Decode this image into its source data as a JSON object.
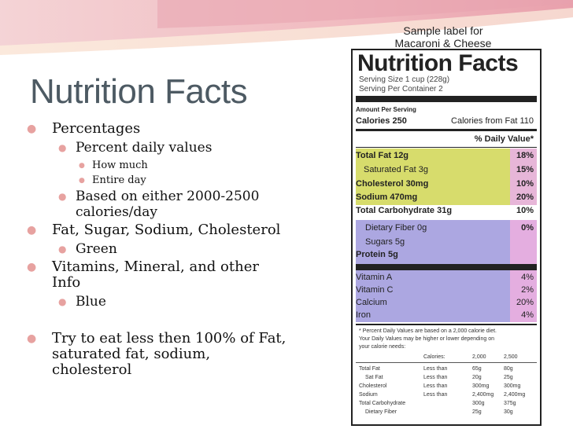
{
  "slide": {
    "title": "Nutrition Facts",
    "bullets": [
      {
        "text": "Percentages",
        "level": 1
      },
      {
        "text": "Percent daily values",
        "level": 2
      },
      {
        "text": "How much",
        "level": 3
      },
      {
        "text": "Entire day",
        "level": 3
      },
      {
        "text": "Based on either 2000-2500",
        "level": 2
      },
      {
        "text": "calories/day",
        "level": 2
      },
      {
        "text": "Fat, Sugar, Sodium, Cholesterol",
        "level": 1
      },
      {
        "text": "Green",
        "level": 2
      },
      {
        "text": "Vitamins, Mineral, and other",
        "level": 1
      },
      {
        "text": "Info",
        "level": 1
      },
      {
        "text": "Blue",
        "level": 2
      },
      {
        "text": "Try to eat less then 100% of Fat,",
        "level": 1
      },
      {
        "text": "saturated fat, sodium,",
        "level": 1
      },
      {
        "text": "cholesterol",
        "level": 1
      }
    ]
  },
  "label": {
    "sample_line1": "Sample label for",
    "sample_line2": "Macaroni & Cheese",
    "title": "Nutrition Facts",
    "serving_size": "Serving Size 1 cup (228g)",
    "servings_per_container": "Serving Per Container 2",
    "amount_per_serving": "Amount Per Serving",
    "calories": "Calories 250",
    "calories_from_fat": "Calories from Fat 110",
    "daily_value_header": "% Daily Value*",
    "nutrients": [
      {
        "name": "Total Fat 12g",
        "pct": "18%"
      },
      {
        "name": "Saturated Fat 3g",
        "pct": "15%"
      },
      {
        "name": "Cholesterol 30mg",
        "pct": "10%"
      },
      {
        "name": "Sodium 470mg",
        "pct": "20%"
      },
      {
        "name": "Total Carbohydrate 31g",
        "pct": "10%"
      }
    ],
    "others": [
      {
        "name": "Dietary Fiber 0g",
        "pct": "0%"
      },
      {
        "name": "Sugars 5g",
        "pct": ""
      },
      {
        "name": "Protein 5g",
        "pct": ""
      }
    ],
    "vitamins": [
      {
        "name": "Vitamin A",
        "pct": "4%"
      },
      {
        "name": "Vitamin C",
        "pct": "2%"
      },
      {
        "name": "Calcium",
        "pct": "20%"
      },
      {
        "name": "Iron",
        "pct": "4%"
      }
    ],
    "footnote": [
      "* Percent Daily Values are based on a 2,000 calorie diet.",
      "Your Daily Values may be higher or lower depending on",
      "your calorie needs:"
    ],
    "table_header": [
      "Calories:",
      "2,000",
      "2,500"
    ],
    "table_rows": [
      [
        "Total Fat",
        "Less than",
        "65g",
        "80g"
      ],
      [
        "Sat Fat",
        "Less than",
        "20g",
        "25g"
      ],
      [
        "Cholesterol",
        "Less than",
        "300mg",
        "300mg"
      ],
      [
        "Sodium",
        "Less than",
        "2,400mg",
        "2,400mg"
      ],
      [
        "Total Carbohydrate",
        "",
        "300g",
        "375g"
      ],
      [
        "Dietary Fiber",
        "",
        "25g",
        "30g"
      ]
    ]
  },
  "colors": {
    "green": "#d7dc6c",
    "purple": "#aca7e1",
    "pink": "#e4aee0",
    "bullet": "#e7a2a0"
  }
}
